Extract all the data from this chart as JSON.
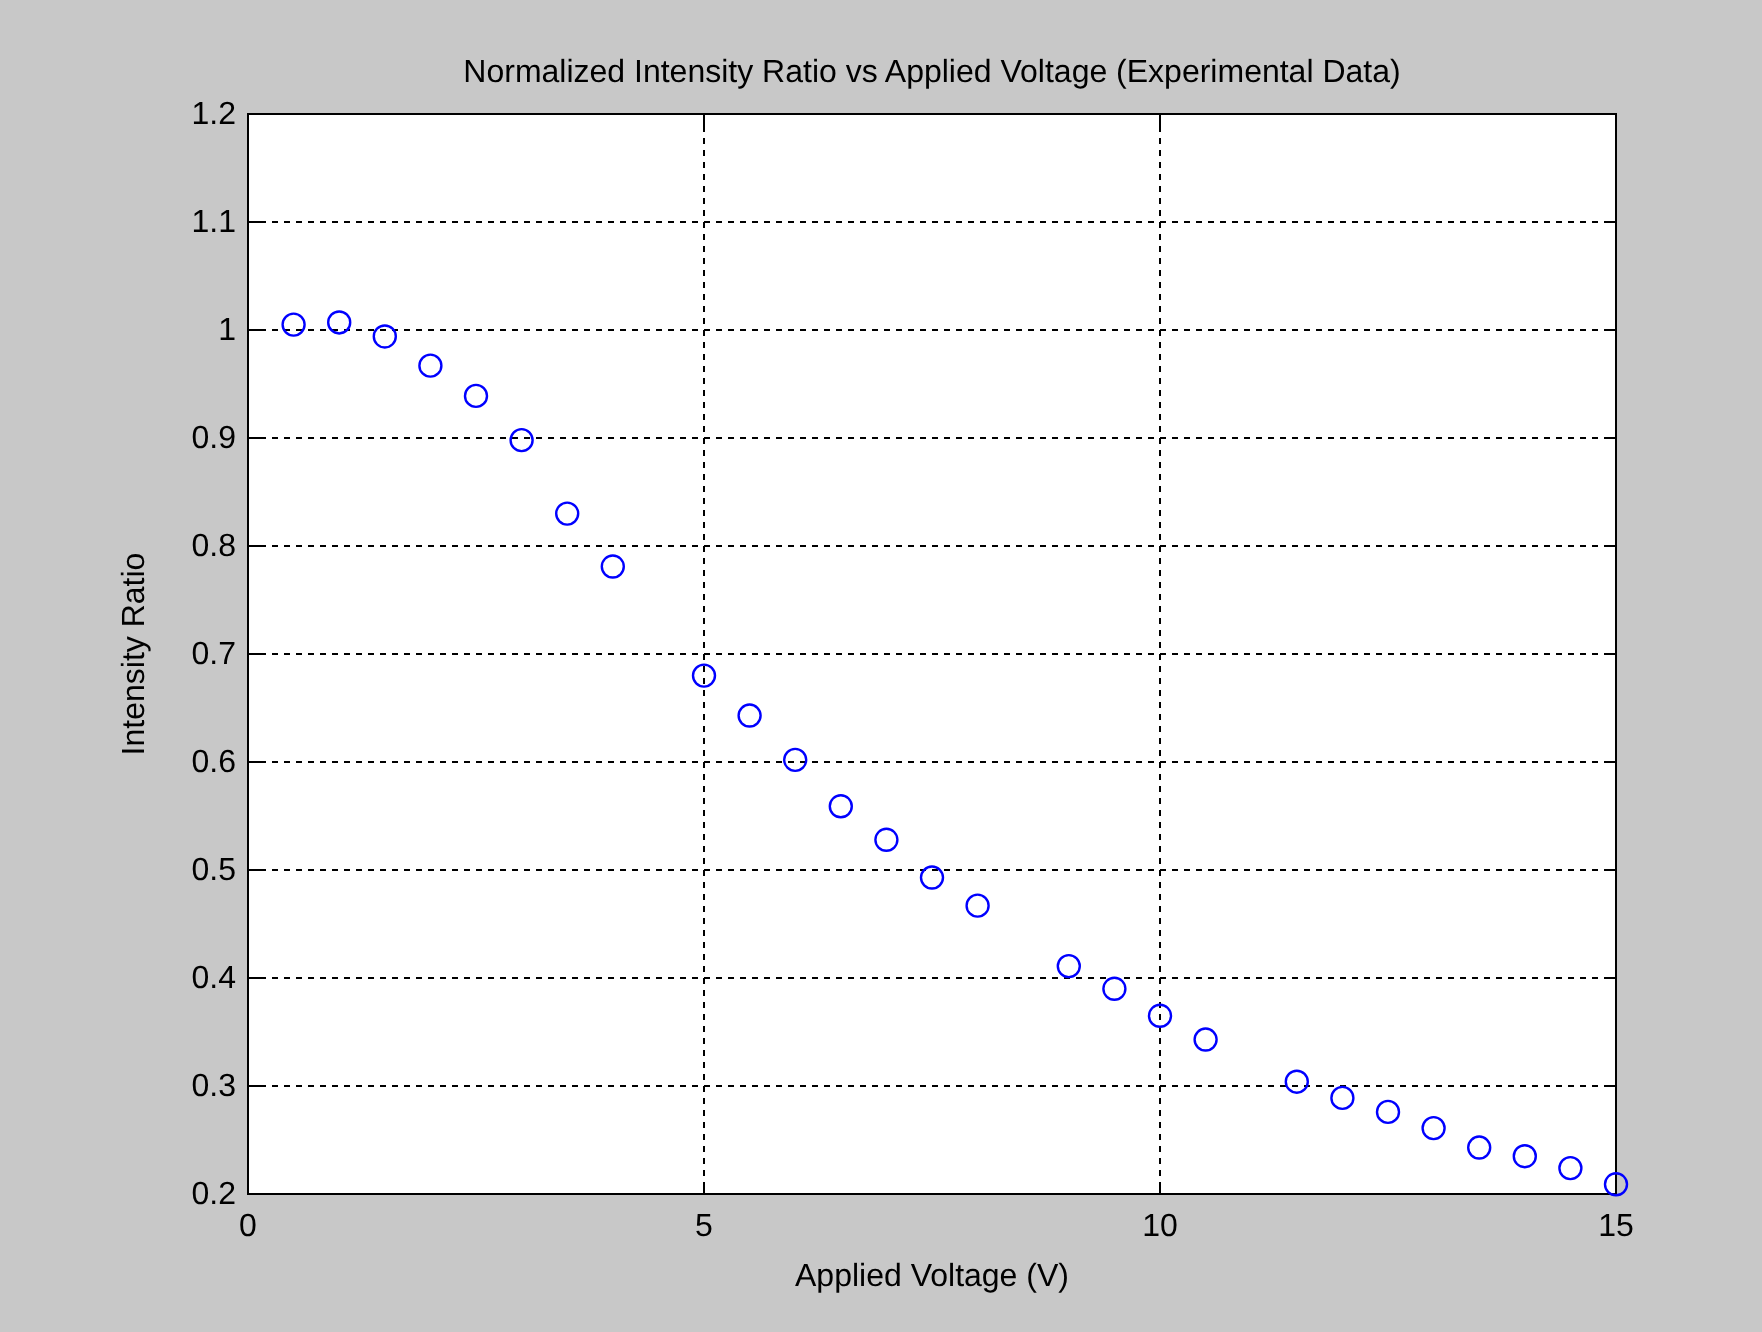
{
  "chart_data": {
    "type": "scatter",
    "title": "Normalized Intensity Ratio vs Applied Voltage (Experimental Data)",
    "xlabel": "Applied Voltage (V)",
    "ylabel": "Intensity Ratio",
    "x": [
      0.5,
      1,
      1.5,
      2,
      2.5,
      3,
      3.5,
      4,
      5,
      5.5,
      6,
      6.5,
      7,
      7.5,
      8,
      9,
      9.5,
      10,
      10.5,
      11.5,
      12,
      12.5,
      13,
      13.5,
      14,
      14.5,
      15
    ],
    "series": [
      {
        "color": "#0000ff",
        "values": [
          1.005,
          1.007,
          0.994,
          0.967,
          0.939,
          0.898,
          0.83,
          0.781,
          0.68,
          0.643,
          0.602,
          0.559,
          0.528,
          0.493,
          0.467,
          0.411,
          0.39,
          0.365,
          0.343,
          0.304,
          0.289,
          0.276,
          0.261,
          0.243,
          0.235,
          0.224,
          0.209
        ]
      }
    ],
    "xlim": [
      0,
      15
    ],
    "xticks": [
      0,
      5,
      10,
      15
    ],
    "ylim": [
      0.2,
      1.2
    ],
    "yticks": [
      0.2,
      0.3,
      0.4,
      0.5,
      0.6,
      0.7,
      0.8,
      0.9,
      1,
      1.1,
      1.2
    ],
    "grid": true,
    "marker": "circle"
  }
}
